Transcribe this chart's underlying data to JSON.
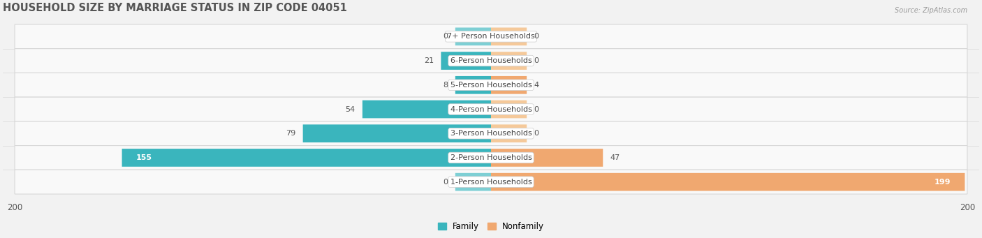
{
  "title": "HOUSEHOLD SIZE BY MARRIAGE STATUS IN ZIP CODE 04051",
  "source": "Source: ZipAtlas.com",
  "categories": [
    "7+ Person Households",
    "6-Person Households",
    "5-Person Households",
    "4-Person Households",
    "3-Person Households",
    "2-Person Households",
    "1-Person Households"
  ],
  "family_values": [
    0,
    21,
    8,
    54,
    79,
    155,
    0
  ],
  "nonfamily_values": [
    0,
    0,
    4,
    0,
    0,
    47,
    199
  ],
  "family_color": "#3ab5bd",
  "nonfamily_color": "#f0a870",
  "family_color_light": "#7ecfd4",
  "nonfamily_color_light": "#f5c99a",
  "xlim": 200,
  "background_color": "#f2f2f2",
  "row_bg_color": "#f9f9f9",
  "row_border_color": "#d8d8d8",
  "title_fontsize": 10.5,
  "label_fontsize": 8,
  "value_fontsize": 8,
  "axis_label_fontsize": 8.5,
  "min_bar_display": 15
}
